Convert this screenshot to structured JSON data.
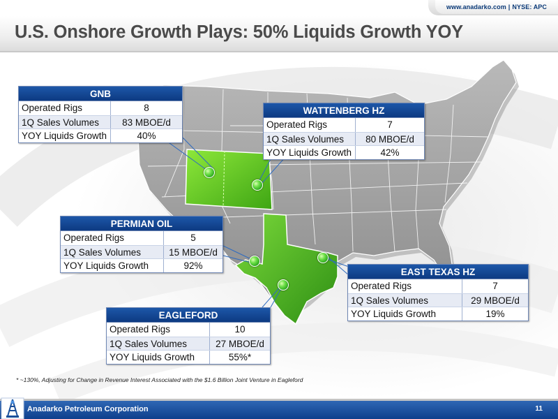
{
  "header": {
    "website": "www.anadarko.com",
    "separator": "|",
    "ticker": "NYSE: APC"
  },
  "title": "U.S. Onshore Growth Plays: 50% Liquids Growth YOY",
  "tables": {
    "gnb": {
      "title": "GNB",
      "rows": [
        {
          "label": "Operated Rigs",
          "value": "8"
        },
        {
          "label": "1Q Sales Volumes",
          "value": "83 MBOE/d"
        },
        {
          "label": "YOY Liquids Growth",
          "value": "40%"
        }
      ]
    },
    "wattenberg": {
      "title": "WATTENBERG HZ",
      "rows": [
        {
          "label": "Operated Rigs",
          "value": "7"
        },
        {
          "label": "1Q Sales Volumes",
          "value": "80 MBOE/d"
        },
        {
          "label": "YOY Liquids Growth",
          "value": "42%"
        }
      ]
    },
    "permian": {
      "title": "PERMIAN OIL",
      "rows": [
        {
          "label": "Operated Rigs",
          "value": "5"
        },
        {
          "label": "1Q Sales Volumes",
          "value": "15 MBOE/d"
        },
        {
          "label": "YOY Liquids Growth",
          "value": "92%"
        }
      ]
    },
    "east_texas": {
      "title": "EAST TEXAS HZ",
      "rows": [
        {
          "label": "Operated Rigs",
          "value": "7"
        },
        {
          "label": "1Q Sales Volumes",
          "value": "29 MBOE/d"
        },
        {
          "label": "YOY Liquids Growth",
          "value": "19%"
        }
      ]
    },
    "eagleford": {
      "title": "EAGLEFORD",
      "rows": [
        {
          "label": "Operated Rigs",
          "value": "10"
        },
        {
          "label": "1Q Sales Volumes",
          "value": "27 MBOE/d"
        },
        {
          "label": "YOY Liquids Growth",
          "value": "55%*"
        }
      ]
    }
  },
  "footnote": "* ~130%, Adjusting for Change in Revenue Interest Associated with the $1.6 Billion Joint Venture in Eagleford",
  "footer": {
    "company": "Anadarko Petroleum Corporation",
    "page": "11"
  },
  "colors": {
    "header_blue": "#0d3a82",
    "highlight_green": "#5cc21e",
    "map_gray": "#9c9c9c"
  },
  "icons": {
    "logo": "anadarko-derrick-logo",
    "pin": "green-location-pin"
  }
}
